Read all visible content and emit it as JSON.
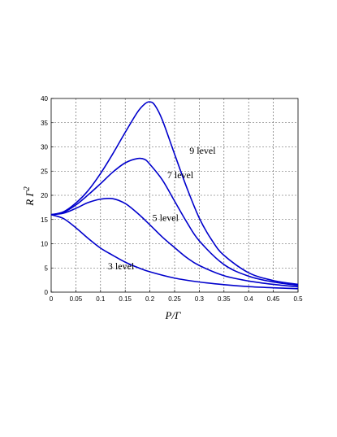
{
  "chart_data": {
    "type": "line",
    "title": "",
    "xlabel": "P/Γ",
    "ylabel_main": "R Γ",
    "ylabel_sup": "2",
    "xlim": [
      0,
      0.5
    ],
    "ylim": [
      0,
      40
    ],
    "grid": true,
    "x_ticks": [
      "0",
      "0.05",
      "0.1",
      "0.15",
      "0.2",
      "0.25",
      "0.3",
      "0.35",
      "0.4",
      "0.45",
      "0.5"
    ],
    "y_ticks": [
      "0",
      "5",
      "10",
      "15",
      "20",
      "25",
      "30",
      "35",
      "40"
    ],
    "colors": {
      "line": "#0000cc"
    },
    "series": [
      {
        "name": "3 level",
        "label_at": [
          0.115,
          4.7
        ],
        "points": [
          [
            0,
            16
          ],
          [
            0.025,
            15.2
          ],
          [
            0.05,
            13.3
          ],
          [
            0.075,
            11.1
          ],
          [
            0.1,
            9.1
          ],
          [
            0.125,
            7.6
          ],
          [
            0.15,
            6.2
          ],
          [
            0.175,
            5.1
          ],
          [
            0.2,
            4.2
          ],
          [
            0.25,
            2.9
          ],
          [
            0.3,
            2.1
          ],
          [
            0.35,
            1.55
          ],
          [
            0.4,
            1.15
          ],
          [
            0.45,
            0.9
          ],
          [
            0.5,
            0.7
          ]
        ]
      },
      {
        "name": "5 level",
        "label_at": [
          0.205,
          14.7
        ],
        "points": [
          [
            0,
            16
          ],
          [
            0.025,
            16.3
          ],
          [
            0.05,
            17.3
          ],
          [
            0.075,
            18.5
          ],
          [
            0.1,
            19.2
          ],
          [
            0.125,
            19.3
          ],
          [
            0.15,
            18.3
          ],
          [
            0.175,
            16.3
          ],
          [
            0.2,
            13.9
          ],
          [
            0.225,
            11.4
          ],
          [
            0.25,
            9.2
          ],
          [
            0.275,
            7.1
          ],
          [
            0.3,
            5.5
          ],
          [
            0.35,
            3.4
          ],
          [
            0.4,
            2.3
          ],
          [
            0.45,
            1.6
          ],
          [
            0.5,
            1.1
          ]
        ]
      },
      {
        "name": "7 level",
        "label_at": [
          0.235,
          23.5
        ],
        "points": [
          [
            0,
            16
          ],
          [
            0.025,
            16.5
          ],
          [
            0.05,
            18
          ],
          [
            0.075,
            20.1
          ],
          [
            0.1,
            22.4
          ],
          [
            0.125,
            24.8
          ],
          [
            0.15,
            26.7
          ],
          [
            0.175,
            27.6
          ],
          [
            0.19,
            27.4
          ],
          [
            0.2,
            26.4
          ],
          [
            0.225,
            23.2
          ],
          [
            0.25,
            18.8
          ],
          [
            0.275,
            14.4
          ],
          [
            0.3,
            10.6
          ],
          [
            0.35,
            5.7
          ],
          [
            0.4,
            3.3
          ],
          [
            0.45,
            2.1
          ],
          [
            0.5,
            1.4
          ]
        ]
      },
      {
        "name": "9 level",
        "label_at": [
          0.28,
          28.6
        ],
        "points": [
          [
            0,
            16
          ],
          [
            0.025,
            16.6
          ],
          [
            0.05,
            18.4
          ],
          [
            0.075,
            21
          ],
          [
            0.1,
            24.5
          ],
          [
            0.125,
            28.6
          ],
          [
            0.15,
            33
          ],
          [
            0.175,
            37.2
          ],
          [
            0.19,
            38.9
          ],
          [
            0.2,
            39.3
          ],
          [
            0.21,
            38.6
          ],
          [
            0.225,
            35.6
          ],
          [
            0.25,
            28.5
          ],
          [
            0.275,
            21.5
          ],
          [
            0.3,
            15.3
          ],
          [
            0.325,
            10.8
          ],
          [
            0.35,
            7.6
          ],
          [
            0.4,
            4
          ],
          [
            0.45,
            2.4
          ],
          [
            0.5,
            1.6
          ]
        ]
      }
    ]
  }
}
